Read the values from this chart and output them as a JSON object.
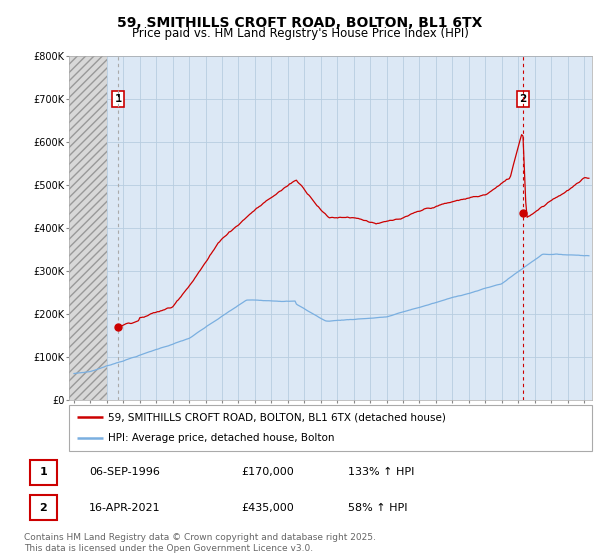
{
  "title": "59, SMITHILLS CROFT ROAD, BOLTON, BL1 6TX",
  "subtitle": "Price paid vs. HM Land Registry's House Price Index (HPI)",
  "ylim": [
    0,
    800000
  ],
  "yticks": [
    0,
    100000,
    200000,
    300000,
    400000,
    500000,
    600000,
    700000,
    800000
  ],
  "ytick_labels": [
    "£0",
    "£100K",
    "£200K",
    "£300K",
    "£400K",
    "£500K",
    "£600K",
    "£700K",
    "£800K"
  ],
  "xlim_start": 1993.7,
  "xlim_end": 2025.5,
  "hatch_end": 1996.0,
  "marker1_x": 1996.68,
  "marker1_y": 170000,
  "marker1_label": "1",
  "marker2_x": 2021.28,
  "marker2_y": 435000,
  "marker2_label": "2",
  "red_color": "#cc0000",
  "blue_color": "#7aafe0",
  "hatch_facecolor": "#d8d8d8",
  "plot_bg_color": "#dce8f5",
  "grid_color": "#b8cde0",
  "background_color": "#ffffff",
  "legend_line1": "59, SMITHILLS CROFT ROAD, BOLTON, BL1 6TX (detached house)",
  "legend_line2": "HPI: Average price, detached house, Bolton",
  "table_row1": [
    "1",
    "06-SEP-1996",
    "£170,000",
    "133% ↑ HPI"
  ],
  "table_row2": [
    "2",
    "16-APR-2021",
    "£435,000",
    "58% ↑ HPI"
  ],
  "footnote": "Contains HM Land Registry data © Crown copyright and database right 2025.\nThis data is licensed under the Open Government Licence v3.0.",
  "title_fontsize": 10,
  "subtitle_fontsize": 8.5,
  "tick_fontsize": 7,
  "legend_fontsize": 7.5,
  "table_fontsize": 8,
  "footnote_fontsize": 6.5
}
